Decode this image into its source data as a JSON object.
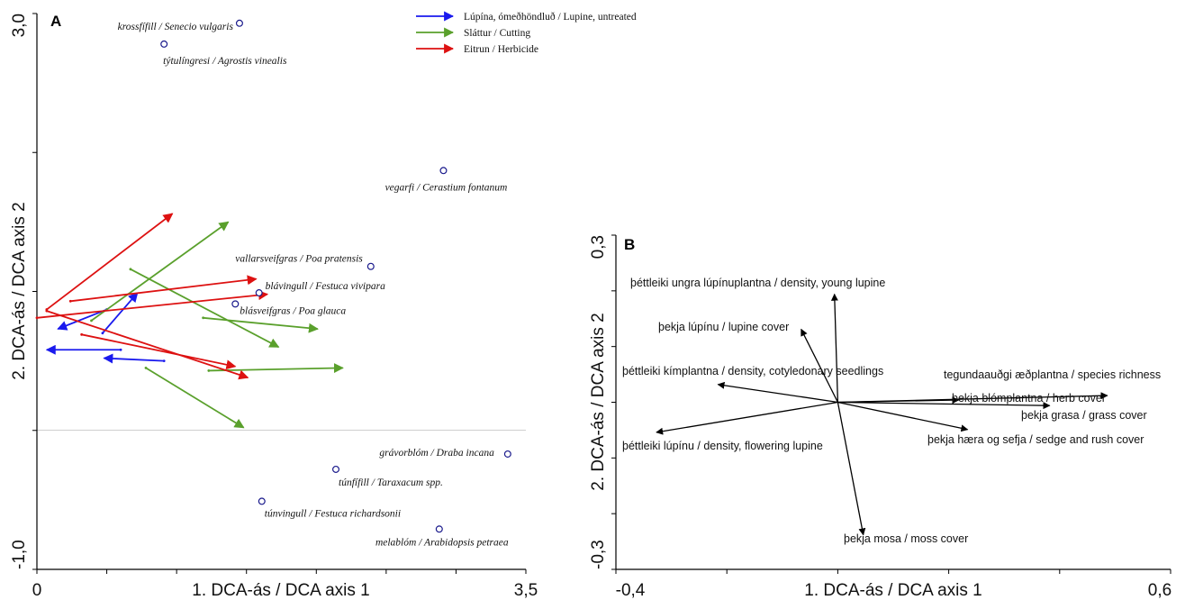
{
  "chart_data": [
    {
      "panel": "A",
      "type": "scatter",
      "xlabel": "1. DCA-ás / DCA axis 1",
      "ylabel": "2. DCA-ás / DCA axis 2",
      "xlim": [
        0,
        3.5
      ],
      "ylim": [
        -1.0,
        3.0
      ],
      "x_tick_labels": [
        "0",
        "3,5"
      ],
      "y_tick_labels": [
        "-1,0",
        "3,0"
      ],
      "legend": [
        {
          "label": "Lúpína, ómeðhöndluð / Lupine, untreated",
          "color": "#1a1aee"
        },
        {
          "label": "Sláttur / Cutting",
          "color": "#5aa02c"
        },
        {
          "label": "Eitrun / Herbicide",
          "color": "#dd1111"
        }
      ],
      "species": [
        {
          "label": "krossfífill / Senecio vulgaris",
          "x": 1.45,
          "y": 2.93
        },
        {
          "label": "týtulíngresi / Agrostis vinealis",
          "x": 0.91,
          "y": 2.78
        },
        {
          "label": "vegarfi / Cerastium fontanum",
          "x": 2.91,
          "y": 1.87
        },
        {
          "label": "vallarsveifgras / Poa pratensis",
          "x": 2.39,
          "y": 1.18
        },
        {
          "label": "blávingull / Festuca vivipara",
          "x": 1.59,
          "y": 0.99
        },
        {
          "label": "blásveifgras / Poa glauca",
          "x": 1.42,
          "y": 0.91
        },
        {
          "label": "grávorblóm / Draba incana",
          "x": 3.37,
          "y": -0.17
        },
        {
          "label": "túnfífill / Taraxacum spp.",
          "x": 2.14,
          "y": -0.28
        },
        {
          "label": "túnvingull  / Festuca richardsonii",
          "x": 1.61,
          "y": -0.51
        },
        {
          "label": "melablóm / Arabidopsis petraea",
          "x": 2.88,
          "y": -0.71
        }
      ],
      "trajectories": [
        {
          "group": 0,
          "x0": 0.6,
          "y0": 0.58,
          "x1": 0.07,
          "y1": 0.58
        },
        {
          "group": 0,
          "x0": 0.5,
          "y0": 0.87,
          "x1": 0.15,
          "y1": 0.73
        },
        {
          "group": 0,
          "x0": 0.47,
          "y0": 0.7,
          "x1": 0.72,
          "y1": 0.99
        },
        {
          "group": 0,
          "x0": 0.91,
          "y0": 0.5,
          "x1": 0.48,
          "y1": 0.52
        },
        {
          "group": 1,
          "x0": 0.39,
          "y0": 0.79,
          "x1": 1.37,
          "y1": 1.5
        },
        {
          "group": 1,
          "x0": 0.67,
          "y0": 1.16,
          "x1": 1.73,
          "y1": 0.6
        },
        {
          "group": 1,
          "x0": 1.19,
          "y0": 0.81,
          "x1": 2.01,
          "y1": 0.73
        },
        {
          "group": 1,
          "x0": 1.23,
          "y0": 0.43,
          "x1": 2.19,
          "y1": 0.45
        },
        {
          "group": 1,
          "x0": 0.78,
          "y0": 0.45,
          "x1": 1.48,
          "y1": 0.02
        },
        {
          "group": 2,
          "x0": 0.07,
          "y0": 0.87,
          "x1": 0.97,
          "y1": 1.56
        },
        {
          "group": 2,
          "x0": 0.24,
          "y0": 0.93,
          "x1": 1.57,
          "y1": 1.09
        },
        {
          "group": 2,
          "x0": 0.0,
          "y0": 0.81,
          "x1": 1.65,
          "y1": 0.98
        },
        {
          "group": 2,
          "x0": 0.32,
          "y0": 0.69,
          "x1": 1.42,
          "y1": 0.46
        },
        {
          "group": 2,
          "x0": 0.07,
          "y0": 0.86,
          "x1": 1.51,
          "y1": 0.38
        }
      ]
    },
    {
      "panel": "B",
      "type": "scatter",
      "xlabel": "1. DCA-ás / DCA axis 1",
      "ylabel": "2. DCA-ás / DCA axis 2",
      "xlim": [
        -0.4,
        0.6
      ],
      "ylim": [
        -0.3,
        0.3
      ],
      "x_tick_labels": [
        "-0,4",
        "0,6"
      ],
      "y_tick_labels": [
        "-0,3",
        "0,3"
      ],
      "vectors": [
        {
          "label": "þéttleiki ungra lúpínuplantna / density, young lupine",
          "x": -0.006,
          "y": 0.194
        },
        {
          "label": "þekja lúpínu / lupine cover",
          "x": -0.066,
          "y": 0.131
        },
        {
          "label": "þéttleiki kímplantna / density, cotyledonary seedlings",
          "x": -0.216,
          "y": 0.032
        },
        {
          "label": "tegundaauðgi æðplantna / species richness",
          "x": 0.486,
          "y": 0.012
        },
        {
          "label": "þekja blómplantna / herb cover",
          "x": 0.218,
          "y": 0.004
        },
        {
          "label": "þekja grasa / grass cover",
          "x": 0.382,
          "y": -0.006
        },
        {
          "label": "þekja hæra og sefja / sedge and rush cover",
          "x": 0.234,
          "y": -0.049
        },
        {
          "label": "þéttleiki lúpínu / density, flowering lupine",
          "x": -0.327,
          "y": -0.054
        },
        {
          "label": "þekja mosa / moss cover",
          "x": 0.046,
          "y": -0.238
        }
      ]
    }
  ]
}
